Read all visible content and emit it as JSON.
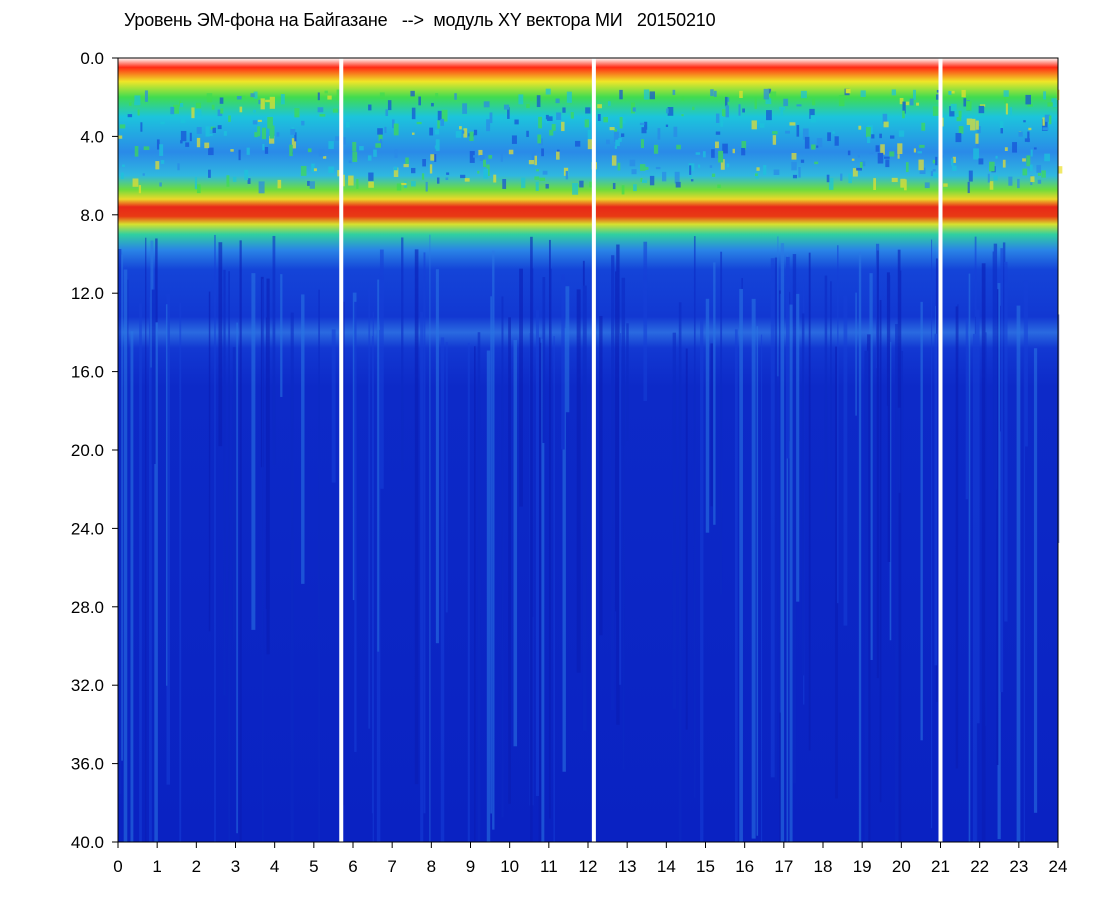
{
  "chart_data": {
    "type": "heatmap",
    "title": "Уровень ЭМ-фона на Байгазане   -->  модуль XY вектора МИ   20150210",
    "xlabel": "",
    "ylabel": "",
    "x_ticks": [
      "0",
      "1",
      "2",
      "3",
      "4",
      "5",
      "6",
      "7",
      "8",
      "9",
      "10",
      "11",
      "12",
      "13",
      "14",
      "15",
      "16",
      "17",
      "18",
      "19",
      "20",
      "21",
      "22",
      "23",
      "24"
    ],
    "y_ticks": [
      "0.0",
      "4.0",
      "8.0",
      "12.0",
      "16.0",
      "20.0",
      "24.0",
      "28.0",
      "32.0",
      "36.0",
      "40.0"
    ],
    "xlim": [
      0,
      24
    ],
    "ylim": [
      0,
      40
    ],
    "y_inverted": true,
    "grid": false,
    "colors": {
      "background_level": "#0a22c8",
      "low": "#1e50e6",
      "mid": "#19c8dc",
      "high": "#3cdc3c",
      "peak_yellow": "#f0f028",
      "peak_red": "#e61e14",
      "gap": "#ffffff"
    },
    "gaps_hours": [
      5.7,
      12.15,
      21.0
    ],
    "intensity_bands": [
      {
        "y_from": 0.5,
        "y_to": 7.0,
        "level": "high-variable"
      },
      {
        "y_from": 7.0,
        "y_to": 8.5,
        "level": "peak"
      },
      {
        "y_from": 8.5,
        "y_to": 10.0,
        "level": "mid"
      },
      {
        "y_from": 13.0,
        "y_to": 15.0,
        "level": "weak"
      }
    ]
  }
}
